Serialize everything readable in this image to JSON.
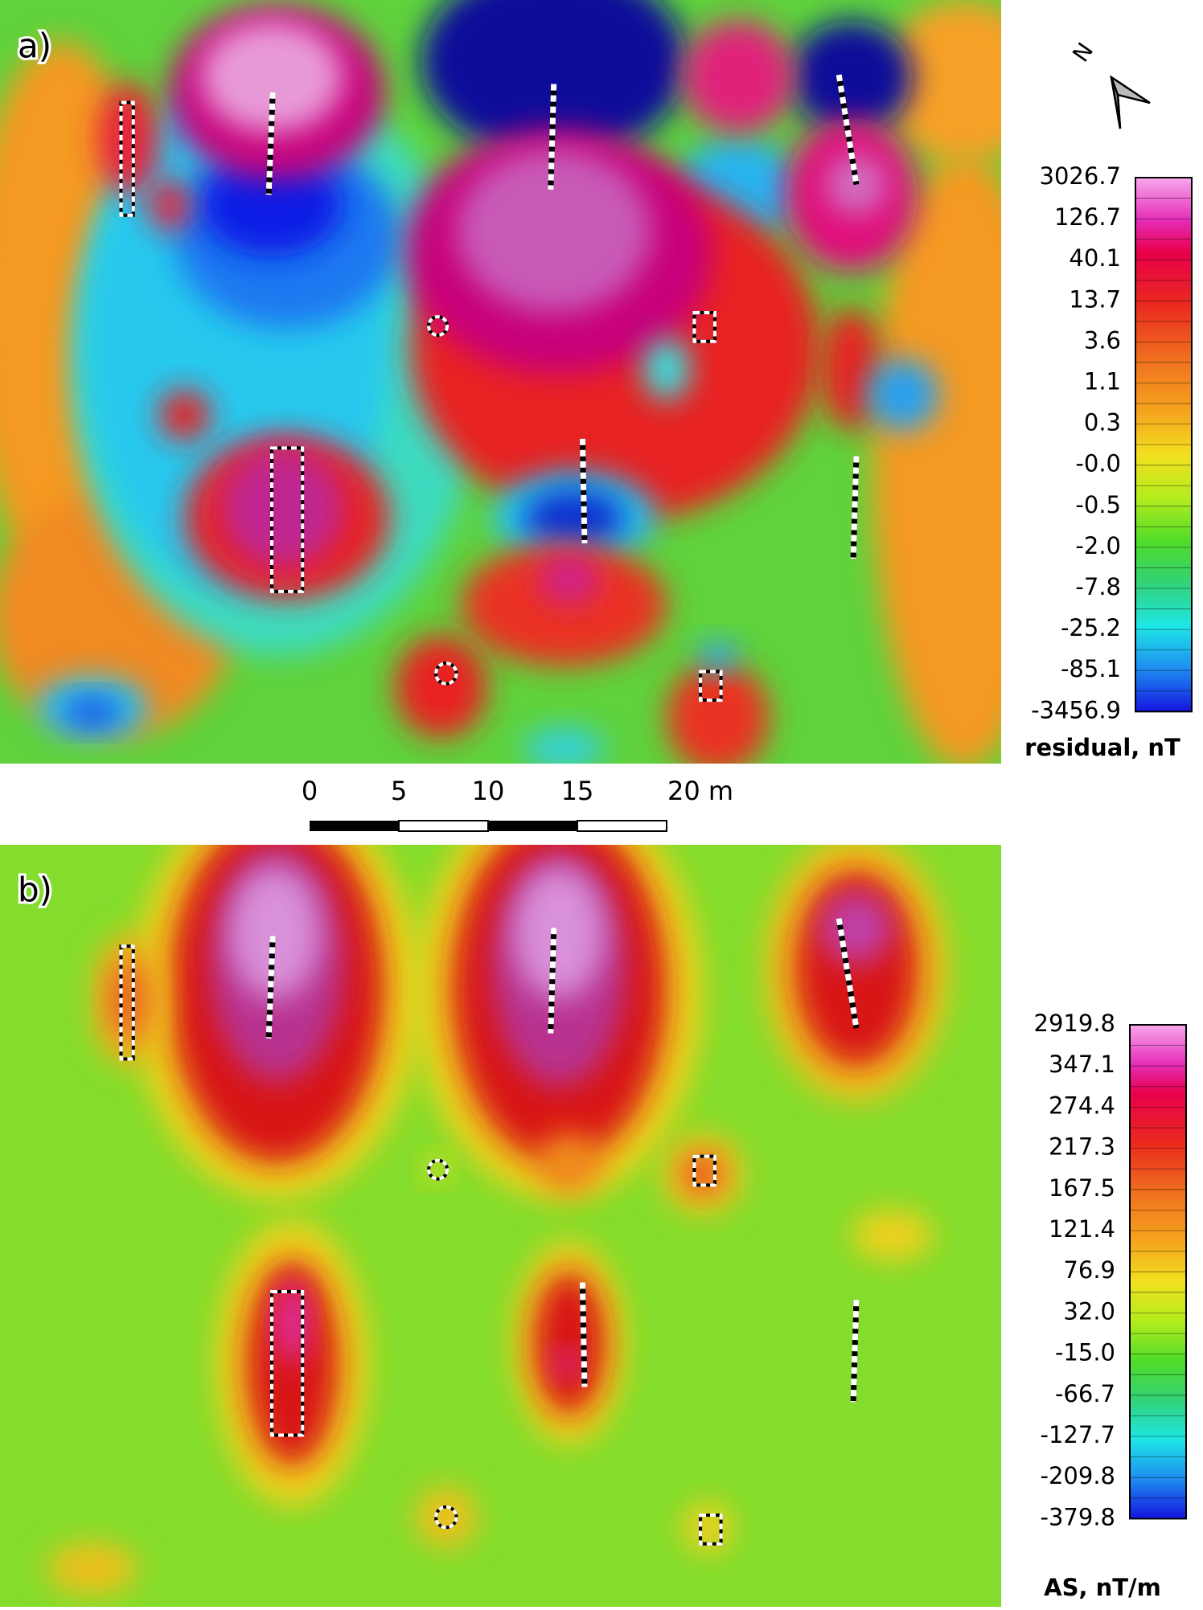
{
  "panels": [
    {
      "label": "a)",
      "colorbar": {
        "title": "residual, nT",
        "ticks": [
          "3026.7",
          "126.7",
          "40.1",
          "13.7",
          "3.6",
          "1.1",
          "0.3",
          "-0.0",
          "-0.5",
          "-2.0",
          "-7.8",
          "-25.2",
          "-85.1",
          "-3456.9"
        ]
      }
    },
    {
      "label": "b)",
      "colorbar": {
        "title": "AS, nT/m",
        "ticks": [
          "2919.8",
          "347.1",
          "274.4",
          "217.3",
          "167.5",
          "121.4",
          "76.9",
          "32.0",
          "-15.0",
          "-66.7",
          "-127.7",
          "-209.8",
          "-379.8"
        ]
      }
    }
  ],
  "north_arrow": {
    "label": "N"
  },
  "scale_bar": {
    "labels": [
      "0",
      "5",
      "10",
      "15",
      "20 m"
    ]
  }
}
